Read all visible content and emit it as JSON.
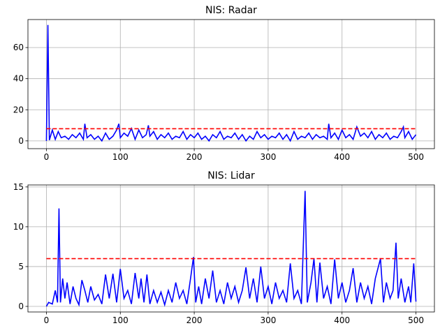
{
  "chart_data": [
    {
      "type": "line",
      "title": "NIS: Radar",
      "xlim": [
        -25,
        525
      ],
      "xticks": [
        0,
        100,
        200,
        300,
        400,
        500
      ],
      "ylim": [
        -5,
        78
      ],
      "yticks": [
        0,
        20,
        40,
        60
      ],
      "grid": true,
      "series": [
        {
          "color": "#0000ff",
          "linestyle": "solid",
          "x": [
            0,
            2,
            4,
            8,
            12,
            16,
            20,
            25,
            30,
            35,
            40,
            45,
            50,
            52,
            55,
            60,
            65,
            70,
            75,
            80,
            85,
            90,
            95,
            98,
            100,
            105,
            110,
            115,
            120,
            125,
            130,
            135,
            138,
            140,
            145,
            150,
            155,
            160,
            165,
            170,
            175,
            180,
            185,
            190,
            195,
            200,
            205,
            210,
            215,
            220,
            225,
            230,
            235,
            240,
            245,
            250,
            255,
            260,
            265,
            270,
            275,
            280,
            285,
            290,
            295,
            300,
            305,
            310,
            315,
            320,
            325,
            330,
            335,
            340,
            345,
            350,
            355,
            360,
            365,
            370,
            375,
            380,
            382,
            385,
            390,
            395,
            400,
            405,
            410,
            415,
            420,
            425,
            430,
            435,
            440,
            445,
            450,
            455,
            460,
            465,
            470,
            475,
            480,
            483,
            485,
            490,
            495,
            500
          ],
          "values": [
            0,
            74.5,
            0.5,
            7,
            1,
            6,
            2,
            3,
            1,
            4,
            2,
            5,
            1,
            11,
            2,
            4,
            1,
            3,
            0,
            5,
            1,
            3,
            7,
            11,
            2,
            5,
            3,
            8,
            1,
            7,
            2,
            4,
            10,
            3,
            6,
            1,
            4,
            2,
            5,
            1,
            3,
            2,
            6,
            1,
            4,
            2,
            5,
            1,
            3,
            0,
            4,
            2,
            6,
            1,
            3,
            2,
            5,
            1,
            4,
            0,
            3,
            1,
            6,
            2,
            4,
            1,
            3,
            2,
            5,
            1,
            4,
            0,
            6,
            1,
            3,
            2,
            5,
            1,
            4,
            2,
            3,
            1,
            11,
            2,
            5,
            1,
            7,
            2,
            4,
            1,
            9,
            3,
            5,
            2,
            6,
            1,
            4,
            2,
            5,
            1,
            3,
            2,
            6,
            9,
            2,
            6,
            1,
            4
          ]
        },
        {
          "color": "#ff0000",
          "linestyle": "dashed",
          "x": [
            0,
            500
          ],
          "values": [
            7.8,
            7.8
          ]
        }
      ]
    },
    {
      "type": "line",
      "title": "NIS: Lidar",
      "xlim": [
        -25,
        525
      ],
      "xticks": [
        0,
        100,
        200,
        300,
        400,
        500
      ],
      "ylim": [
        -0.7,
        15.25
      ],
      "yticks": [
        0,
        5,
        10,
        15
      ],
      "grid": true,
      "series": [
        {
          "color": "#0000ff",
          "linestyle": "solid",
          "x": [
            0,
            3,
            8,
            12,
            15,
            17,
            19,
            22,
            25,
            28,
            32,
            36,
            40,
            44,
            48,
            52,
            56,
            60,
            65,
            70,
            75,
            80,
            85,
            90,
            95,
            100,
            105,
            110,
            115,
            120,
            125,
            128,
            132,
            136,
            140,
            145,
            150,
            155,
            160,
            165,
            170,
            175,
            180,
            185,
            190,
            195,
            199,
            202,
            206,
            210,
            215,
            220,
            225,
            230,
            235,
            240,
            245,
            250,
            255,
            260,
            265,
            270,
            275,
            280,
            285,
            290,
            295,
            300,
            305,
            310,
            315,
            320,
            325,
            330,
            335,
            340,
            345,
            350,
            353,
            358,
            362,
            366,
            370,
            375,
            380,
            385,
            390,
            395,
            400,
            405,
            410,
            415,
            420,
            425,
            430,
            435,
            440,
            445,
            452,
            456,
            460,
            465,
            469,
            473,
            476,
            480,
            485,
            490,
            493,
            497,
            500
          ],
          "values": [
            0,
            0.5,
            0.3,
            2,
            0.5,
            12.3,
            0.5,
            3.5,
            1,
            3,
            0.3,
            2.5,
            1,
            0.2,
            3.3,
            2,
            0.5,
            2.5,
            0.8,
            1.5,
            0.3,
            4,
            1,
            4.1,
            0.5,
            4.7,
            1,
            2,
            0.3,
            4.2,
            1,
            3.5,
            0.5,
            4,
            0.3,
            2,
            0.5,
            1.8,
            0.2,
            2,
            0.5,
            3,
            1,
            2,
            0.3,
            3.5,
            6.2,
            0.5,
            2.5,
            0.3,
            3.5,
            1,
            4.5,
            0.5,
            2,
            0.3,
            3,
            1,
            2.5,
            0.5,
            2,
            4.9,
            1,
            3.5,
            0.5,
            5,
            1,
            2.5,
            0.3,
            3,
            1,
            2,
            0.5,
            5.4,
            1,
            2,
            0.3,
            14.5,
            0.5,
            3,
            6,
            0.5,
            5.5,
            1,
            2.5,
            0.3,
            5.9,
            1,
            3,
            0.5,
            2,
            4.8,
            0.5,
            3,
            1,
            2.5,
            0.3,
            3.5,
            6,
            0.5,
            3,
            1,
            2,
            8,
            1,
            3.5,
            0.5,
            2.5,
            0.5,
            5.4,
            0.6
          ]
        },
        {
          "color": "#ff0000",
          "linestyle": "dashed",
          "x": [
            0,
            500
          ],
          "values": [
            6.0,
            6.0
          ]
        }
      ]
    }
  ]
}
